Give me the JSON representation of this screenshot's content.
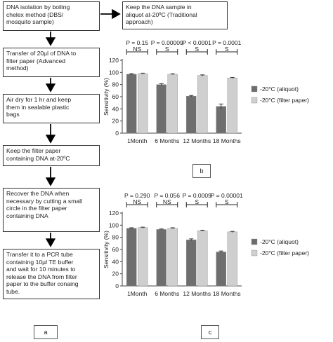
{
  "flowchart": {
    "steps": [
      "DNA isolation by boiling\nchelex method (DBS/\nmosquito  sample)",
      "Transfer of 20µl of  DNA to\nfilter paper (Advanced\nmethod)",
      "Air dry for 1 hr and keep\nthem  in sealable  plastic\nbags",
      "Keep the filter paper\ncontaining DNA at-20ºC",
      "Recover the DNA when\nnecessary by cutting  a small\ncircle  in the filter paper\ncontaining   DNA",
      "Transfer it to a PCR tube\ncontaining  10µl  TE buffer\nand wait for 10 minutes to\nrelease the DNA  from filter\npaper to the buffer conaing\ntube."
    ],
    "side_step": "Keep the DNA  sample in\naliquot at-20ºC (Traditional\napproach)",
    "panel_label": "a"
  },
  "charts": {
    "b": {
      "panel_label": "b",
      "ylabel": "Sensitivity (%)",
      "yticks": [
        "0",
        "20",
        "40",
        "60",
        "80",
        "100",
        "120"
      ],
      "legend": [
        "-20°C (aliquot)",
        "-20°C (filter paper)"
      ],
      "pvalues": [
        "P = 0.15",
        "P = 0.00009",
        "P < 0.0001",
        "P = 0.0001"
      ],
      "sig": [
        "NS",
        "S",
        "S",
        "S"
      ]
    },
    "c": {
      "panel_label": "c",
      "ylabel": "Sensitivity (%)",
      "yticks": [
        "0",
        "20",
        "40",
        "60",
        "80",
        "100",
        "120"
      ],
      "legend": [
        "-20°C (aliquot)",
        "-20°C (filter paper)"
      ],
      "pvalues": [
        "P = 0.290",
        "P = 0.056",
        "P = 0.0009",
        "P = 0.00001"
      ],
      "sig": [
        "NS",
        "NS",
        "S",
        "S"
      ]
    }
  },
  "colors": {
    "aliquot": "#6e6e6e",
    "filter": "#cfcfcf"
  },
  "chart_data": [
    {
      "type": "bar",
      "categories": [
        "1Month",
        "6 Months",
        "12 Months",
        "18 Months"
      ],
      "ylabel": "Sensitivity (%)",
      "ylim": [
        0,
        120
      ],
      "grid": false,
      "legend": "right",
      "series": [
        {
          "name": "-20°C (aliquot)",
          "values": [
            97,
            80,
            61,
            44
          ],
          "errors": [
            1,
            1.5,
            1,
            4
          ]
        },
        {
          "name": "-20°C (filter paper)",
          "values": [
            98,
            97,
            95,
            91
          ],
          "errors": [
            0.8,
            0.8,
            1,
            0.8
          ]
        }
      ]
    },
    {
      "type": "bar",
      "categories": [
        "1Month",
        "6 Months",
        "12 Months",
        "18 Months"
      ],
      "ylabel": "Sensitivity (%)",
      "ylim": [
        0,
        120
      ],
      "grid": false,
      "legend": "right",
      "series": [
        {
          "name": "-20°C (aliquot)",
          "values": [
            95,
            93,
            76,
            56
          ],
          "errors": [
            0.8,
            0.8,
            1.5,
            1.5
          ]
        },
        {
          "name": "-20°C (filter paper)",
          "values": [
            96,
            95,
            91,
            89
          ],
          "errors": [
            0.8,
            0.8,
            0.8,
            0.8
          ]
        }
      ]
    }
  ]
}
